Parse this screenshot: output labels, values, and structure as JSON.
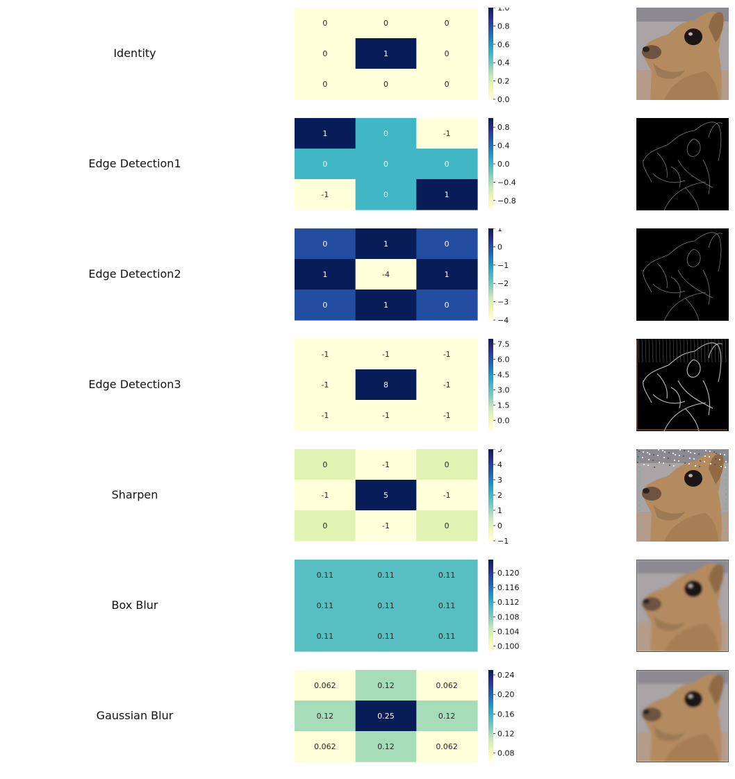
{
  "chart_data": [
    {
      "type": "heatmap",
      "title": "Identity",
      "matrix": [
        [
          0,
          0,
          0
        ],
        [
          0,
          1,
          0
        ],
        [
          0,
          0,
          0
        ]
      ],
      "cell_labels": [
        [
          "0",
          "0",
          "0"
        ],
        [
          "0",
          "1",
          "0"
        ],
        [
          "0",
          "0",
          "0"
        ]
      ],
      "colorbar": {
        "range": [
          0,
          1
        ],
        "ticks": [
          "1.0",
          "0.8",
          "0.6",
          "0.4",
          "0.2",
          "0.0"
        ],
        "tick_values": [
          1.0,
          0.8,
          0.6,
          0.4,
          0.2,
          0.0
        ]
      },
      "result_image": "identity"
    },
    {
      "type": "heatmap",
      "title": "Edge Detection1",
      "matrix": [
        [
          1,
          0,
          -1
        ],
        [
          0,
          0,
          0
        ],
        [
          -1,
          0,
          1
        ]
      ],
      "cell_labels": [
        [
          "1",
          "0",
          "-1"
        ],
        [
          "0",
          "0",
          "0"
        ],
        [
          "-1",
          "0",
          "1"
        ]
      ],
      "colorbar": {
        "range": [
          -1,
          1
        ],
        "ticks": [
          "0.8",
          "0.4",
          "0.0",
          "−0.4",
          "−0.8"
        ],
        "tick_values": [
          0.8,
          0.4,
          0.0,
          -0.4,
          -0.8
        ]
      },
      "result_image": "edges"
    },
    {
      "type": "heatmap",
      "title": "Edge Detection2",
      "matrix": [
        [
          0,
          1,
          0
        ],
        [
          1,
          -4,
          1
        ],
        [
          0,
          1,
          0
        ]
      ],
      "cell_labels": [
        [
          "0",
          "1",
          "0"
        ],
        [
          "1",
          "-4",
          "1"
        ],
        [
          "0",
          "1",
          "0"
        ]
      ],
      "colorbar": {
        "range": [
          -4,
          1
        ],
        "ticks": [
          "1",
          "0",
          "−1",
          "−2",
          "−3",
          "−4"
        ],
        "tick_values": [
          1,
          0,
          -1,
          -2,
          -3,
          -4
        ]
      },
      "result_image": "edges"
    },
    {
      "type": "heatmap",
      "title": "Edge Detection3",
      "matrix": [
        [
          -1,
          -1,
          -1
        ],
        [
          -1,
          8,
          -1
        ],
        [
          -1,
          -1,
          -1
        ]
      ],
      "cell_labels": [
        [
          "-1",
          "-1",
          "-1"
        ],
        [
          "-1",
          "8",
          "-1"
        ],
        [
          "-1",
          "-1",
          "-1"
        ]
      ],
      "colorbar": {
        "range": [
          -1,
          8
        ],
        "ticks": [
          "7.5",
          "6.0",
          "4.5",
          "3.0",
          "1.5",
          "0.0"
        ],
        "tick_values": [
          7.5,
          6.0,
          4.5,
          3.0,
          1.5,
          0.0
        ]
      },
      "result_image": "edges-strong"
    },
    {
      "type": "heatmap",
      "title": "Sharpen",
      "matrix": [
        [
          0,
          -1,
          0
        ],
        [
          -1,
          5,
          -1
        ],
        [
          0,
          -1,
          0
        ]
      ],
      "cell_labels": [
        [
          "0",
          "-1",
          "0"
        ],
        [
          "-1",
          "5",
          "-1"
        ],
        [
          "0",
          "-1",
          "0"
        ]
      ],
      "colorbar": {
        "range": [
          -1,
          5
        ],
        "ticks": [
          "5",
          "4",
          "3",
          "2",
          "1",
          "0",
          "−1"
        ],
        "tick_values": [
          5,
          4,
          3,
          2,
          1,
          0,
          -1
        ]
      },
      "result_image": "sharpen"
    },
    {
      "type": "heatmap",
      "title": "Box Blur",
      "matrix": [
        [
          0.11,
          0.11,
          0.11
        ],
        [
          0.11,
          0.11,
          0.11
        ],
        [
          0.11,
          0.11,
          0.11
        ]
      ],
      "cell_labels": [
        [
          "0.11",
          "0.11",
          "0.11"
        ],
        [
          "0.11",
          "0.11",
          "0.11"
        ],
        [
          "0.11",
          "0.11",
          "0.11"
        ]
      ],
      "colorbar": {
        "range": [
          0.0986,
          0.1236
        ],
        "ticks": [
          "0.120",
          "0.116",
          "0.112",
          "0.108",
          "0.104",
          "0.100"
        ],
        "tick_values": [
          0.12,
          0.116,
          0.112,
          0.108,
          0.104,
          0.1
        ]
      },
      "result_image": "blur"
    },
    {
      "type": "heatmap",
      "title": "Gaussian Blur",
      "matrix": [
        [
          0.062,
          0.12,
          0.062
        ],
        [
          0.12,
          0.25,
          0.12
        ],
        [
          0.062,
          0.12,
          0.062
        ]
      ],
      "cell_labels": [
        [
          "0.062",
          "0.12",
          "0.062"
        ],
        [
          "0.12",
          "0.25",
          "0.12"
        ],
        [
          "0.062",
          "0.12",
          "0.062"
        ]
      ],
      "colorbar": {
        "range": [
          0.0625,
          0.25
        ],
        "ticks": [
          "0.24",
          "0.20",
          "0.16",
          "0.12",
          "0.08"
        ],
        "tick_values": [
          0.24,
          0.2,
          0.16,
          0.12,
          0.08
        ]
      },
      "result_image": "blur"
    }
  ],
  "colormap": [
    "#ffffd9",
    "#edf8b1",
    "#c7e9b4",
    "#7fcdbb",
    "#41b6c4",
    "#1d91c0",
    "#225ea8",
    "#253494",
    "#081d58"
  ]
}
